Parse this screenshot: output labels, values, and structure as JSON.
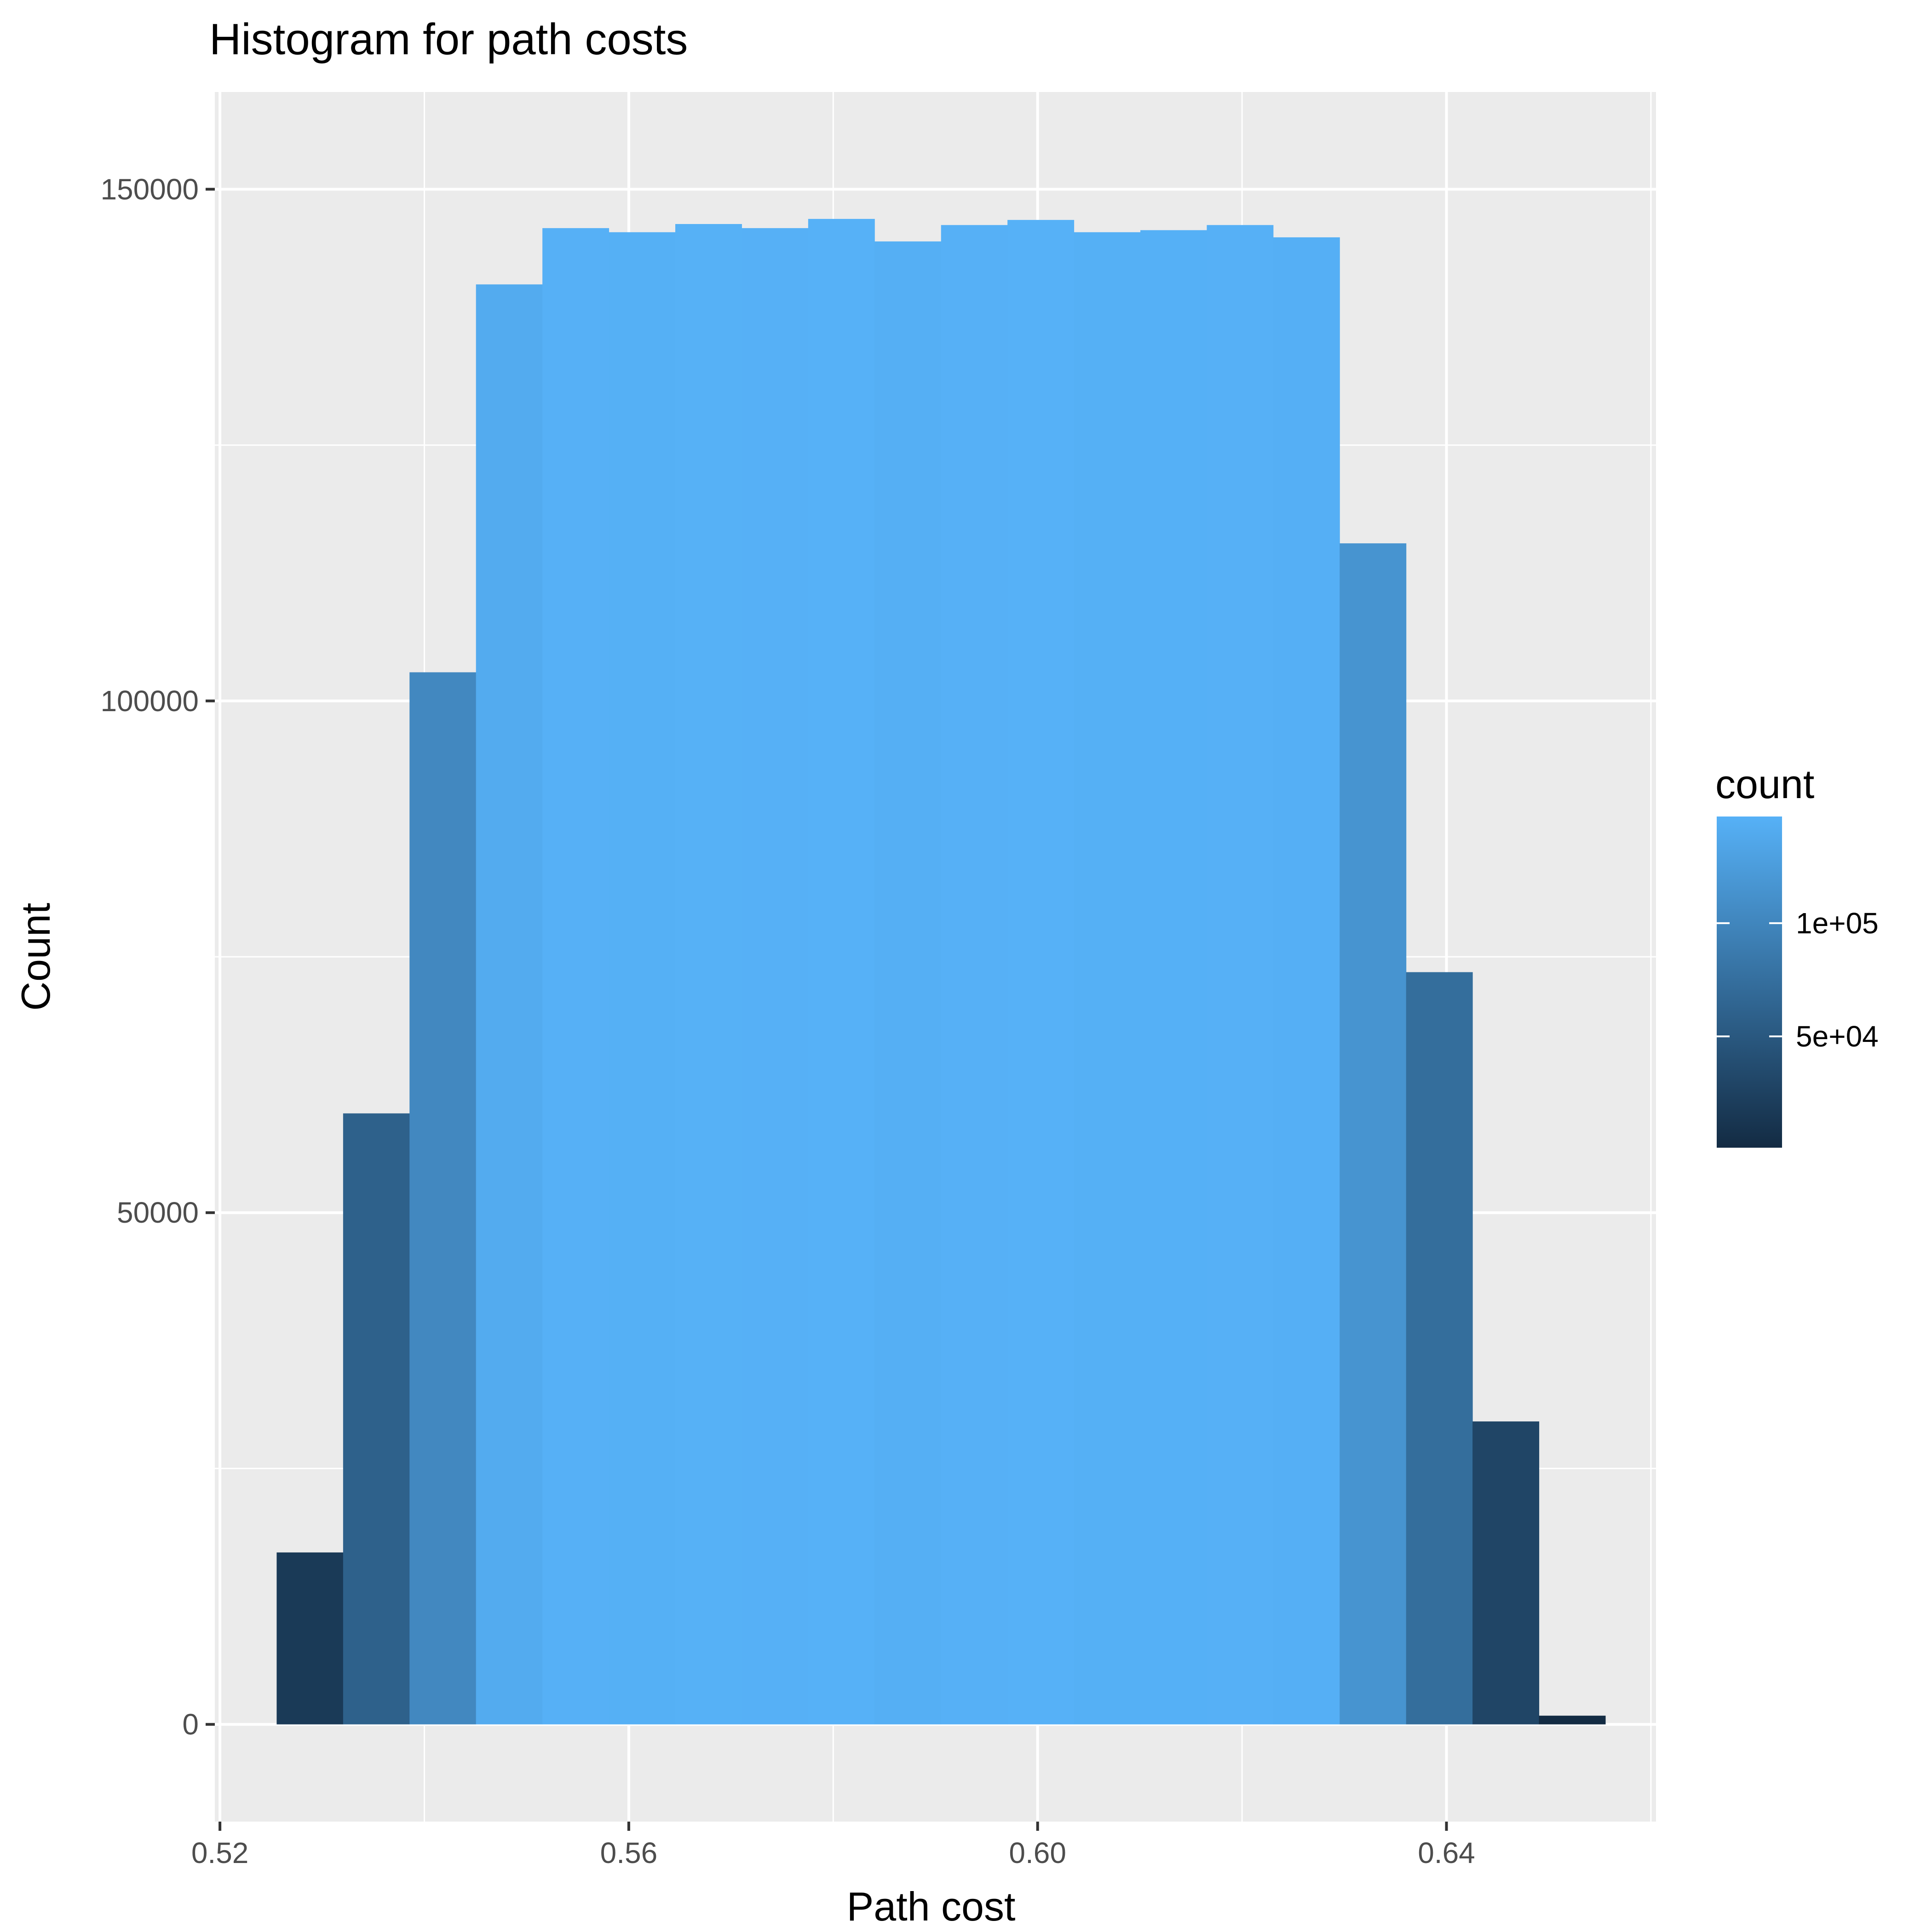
{
  "chart_data": {
    "type": "bar",
    "title": "Histogram for path costs",
    "xlabel": "Path cost",
    "ylabel": "Count",
    "xlim": [
      0.5195,
      0.6605
    ],
    "ylim": [
      -9500,
      159500
    ],
    "x_ticks": [
      0.52,
      0.56,
      0.6,
      0.64
    ],
    "x_tick_labels": [
      "0.52",
      "0.56",
      "0.60",
      "0.64"
    ],
    "y_ticks": [
      0,
      50000,
      100000,
      150000
    ],
    "y_tick_labels": [
      "0",
      "50000",
      "100000",
      "150000"
    ],
    "bin_width": 0.0065,
    "bin_centers": [
      0.5288,
      0.5353,
      0.5418,
      0.5483,
      0.5548,
      0.5613,
      0.5678,
      0.5743,
      0.5808,
      0.5873,
      0.5938,
      0.6003,
      0.6068,
      0.6133,
      0.6198,
      0.6263,
      0.6328,
      0.6393,
      0.6458,
      0.6523
    ],
    "values": [
      16800,
      59700,
      102800,
      140700,
      146200,
      145800,
      146600,
      146200,
      147100,
      144900,
      146500,
      147000,
      145800,
      146000,
      146500,
      145300,
      115400,
      73500,
      29600,
      850
    ],
    "grid": true,
    "legend": {
      "title": "count",
      "placement": "right",
      "type": "colorbar",
      "labels": [
        "5e+04",
        "1e+05"
      ],
      "label_values": [
        50000,
        100000
      ],
      "range": [
        850,
        147100
      ],
      "color_low": "#132b43",
      "color_high": "#56b1f7"
    },
    "colors": {
      "panel_background": "#ebebeb",
      "grid_line": "#ffffff"
    }
  }
}
